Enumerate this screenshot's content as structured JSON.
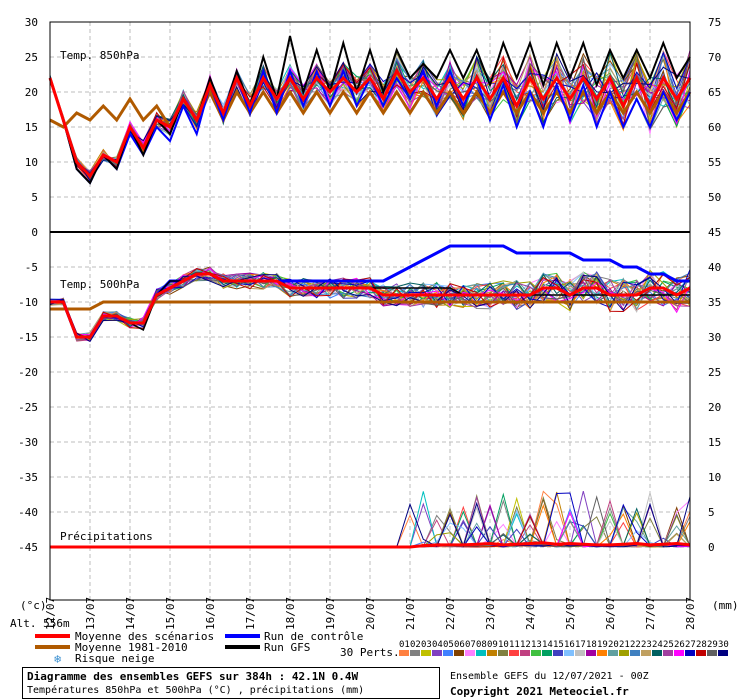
{
  "chart_data": {
    "type": "line",
    "x_labels": [
      "12/07",
      "13/07",
      "14/07",
      "15/07",
      "16/07",
      "17/07",
      "18/07",
      "19/07",
      "20/07",
      "21/07",
      "22/07",
      "23/07",
      "24/07",
      "25/07",
      "26/07",
      "27/07",
      "28/07"
    ],
    "left_ticks": [
      "30",
      "25",
      "20",
      "15",
      "10",
      "5",
      "0",
      "-5",
      "-10",
      "-15",
      "-20",
      "-25",
      "-30",
      "-35",
      "-40",
      "-45"
    ],
    "right_ticks_top": [
      "75",
      "70",
      "65",
      "60",
      "55",
      "50",
      "45"
    ],
    "right_ticks_bottom": [
      "40",
      "35",
      "30",
      "25",
      "20",
      "15",
      "10",
      "5",
      "0"
    ],
    "left_unit": "(°c)",
    "right_unit": "(mm)",
    "panel_t850_label": "Temp. 850hPa",
    "panel_t500_label": "Temp. 500hPa",
    "panel_precip_label": "Précipitations",
    "panels": {
      "t850": {
        "ylim": [
          0,
          30
        ],
        "scenario_mean": [
          22,
          16,
          10,
          8,
          11,
          10,
          15,
          12,
          16,
          15,
          19,
          16,
          21,
          17,
          22,
          18,
          22,
          19,
          22,
          19,
          22,
          20,
          22,
          20,
          22,
          19,
          23,
          20,
          22,
          19,
          22,
          19,
          22,
          19,
          22,
          18,
          22,
          19,
          22,
          19,
          22,
          19,
          22,
          18,
          22,
          18,
          22,
          19,
          22
        ],
        "climate_mean_1981_2010": [
          16,
          15,
          17,
          16,
          18,
          16,
          19,
          16,
          18,
          15,
          19,
          16,
          20,
          16,
          20,
          17,
          20,
          17,
          20,
          17,
          20,
          17,
          20,
          17,
          20,
          17,
          20,
          17,
          20,
          17,
          20,
          17,
          20,
          17,
          20,
          17,
          20,
          17,
          20,
          17,
          20,
          17,
          20,
          17,
          20,
          17,
          20,
          17,
          20
        ],
        "control_run": [
          22,
          16,
          9,
          7,
          11,
          9,
          14,
          11,
          15,
          13,
          18,
          14,
          21,
          16,
          22,
          17,
          23,
          17,
          23,
          18,
          23,
          18,
          23,
          18,
          22,
          18,
          22,
          19,
          23,
          18,
          23,
          18,
          22,
          16,
          21,
          15,
          20,
          15,
          21,
          16,
          21,
          15,
          20,
          15,
          19,
          15,
          20,
          16,
          20
        ],
        "gfs_run": [
          22,
          16,
          9,
          7,
          11,
          9,
          15,
          11,
          16,
          14,
          19,
          16,
          22,
          17,
          23,
          18,
          25,
          19,
          28,
          20,
          26,
          20,
          27,
          20,
          26,
          20,
          26,
          22,
          24,
          22,
          26,
          22,
          26,
          21,
          27,
          22,
          27,
          21,
          27,
          22,
          27,
          21,
          26,
          22,
          26,
          22,
          27,
          22,
          25
        ]
      },
      "t500": {
        "ylim": [
          -20,
          0
        ],
        "scenario_mean": [
          -10,
          -10,
          -15,
          -15,
          -12,
          -12,
          -13,
          -13,
          -9,
          -8,
          -7,
          -6,
          -6,
          -7,
          -7,
          -7,
          -7,
          -7,
          -8,
          -8,
          -8,
          -8,
          -8,
          -8,
          -8,
          -9,
          -9,
          -9,
          -9,
          -9,
          -9,
          -9,
          -9,
          -9,
          -9,
          -9,
          -9,
          -8,
          -8,
          -9,
          -8,
          -8,
          -9,
          -9,
          -9,
          -8,
          -8,
          -9,
          -8
        ],
        "climate_mean_1981_2010": [
          -11,
          -11,
          -11,
          -11,
          -10,
          -10,
          -10,
          -10,
          -10,
          -10,
          -10,
          -10,
          -10,
          -10,
          -10,
          -10,
          -10,
          -10,
          -10,
          -10,
          -10,
          -10,
          -10,
          -10,
          -10,
          -10,
          -10,
          -10,
          -10,
          -10,
          -10,
          -10,
          -10,
          -10,
          -10,
          -10,
          -10,
          -10,
          -10,
          -10,
          -10,
          -10,
          -10,
          -10,
          -10,
          -10,
          -10,
          -10,
          -10
        ],
        "control_run": [
          -10,
          -10,
          -15,
          -15,
          -12,
          -12,
          -13,
          -13,
          -9,
          -7,
          -7,
          -6,
          -6,
          -7,
          -7,
          -7,
          -7,
          -7,
          -7,
          -7,
          -7,
          -7,
          -7,
          -7,
          -7,
          -7,
          -6,
          -5,
          -4,
          -3,
          -2,
          -2,
          -2,
          -2,
          -2,
          -3,
          -3,
          -3,
          -3,
          -3,
          -4,
          -4,
          -4,
          -5,
          -5,
          -6,
          -6,
          -7,
          -7
        ],
        "gfs_run": [
          -10,
          -10,
          -15,
          -15,
          -12,
          -12,
          -13,
          -14,
          -9,
          -7,
          -7,
          -6,
          -6,
          -7,
          -7,
          -7,
          -7,
          -7,
          -8,
          -8,
          -8,
          -8,
          -8,
          -8,
          -8,
          -8,
          -8,
          -8,
          -8,
          -8,
          -8,
          -9,
          -9,
          -9,
          -9,
          -9,
          -9,
          -9,
          -9,
          -9,
          -9,
          -9,
          -9,
          -9,
          -9,
          -9,
          -9,
          -9,
          -9
        ]
      },
      "precip": {
        "ylim": [
          0,
          15
        ],
        "scenario_mean": [
          0,
          0,
          0,
          0,
          0,
          0,
          0,
          0,
          0,
          0,
          0,
          0,
          0,
          0,
          0,
          0,
          0,
          0,
          0,
          0,
          0,
          0,
          0,
          0,
          0,
          0,
          0,
          0,
          0.2,
          0.3,
          0.3,
          0.3,
          0.4,
          0.5,
          0.3,
          0.4,
          0.5,
          0.6,
          0.4,
          0.5,
          0.4,
          0.3,
          0.3,
          0.4,
          0.5,
          0.3,
          0.4,
          0.5,
          0.3
        ],
        "gfs_run": [
          0,
          0,
          0,
          0,
          0,
          0,
          0,
          0,
          0,
          0,
          0,
          0,
          0,
          0,
          0,
          0,
          0,
          0,
          0,
          0,
          0,
          0,
          0,
          0,
          0,
          0,
          0,
          0,
          0,
          0,
          0,
          0,
          0,
          0,
          0,
          0,
          0,
          0,
          0,
          0,
          0,
          0,
          0,
          0,
          0,
          0,
          0,
          0,
          0
        ]
      }
    },
    "legend": [
      {
        "label": "Moyenne des scénarios",
        "color": "#ff0000"
      },
      {
        "label": "Moyenne 1981-2010",
        "color": "#b05a00"
      },
      {
        "label": "Risque neige",
        "color": "#3a8fd0"
      },
      {
        "label": "Run de contrôle",
        "color": "#0000ff"
      },
      {
        "label": "Run GFS",
        "color": "#000000"
      }
    ],
    "perturbations_label": "30 Perts.",
    "perturbation_numbers": [
      "01",
      "02",
      "03",
      "04",
      "05",
      "06",
      "07",
      "08",
      "09",
      "10",
      "11",
      "12",
      "13",
      "14",
      "15",
      "16",
      "17",
      "18",
      "19",
      "20",
      "21",
      "22",
      "23",
      "24",
      "25",
      "26",
      "27",
      "28",
      "29",
      "30"
    ],
    "perturbation_colors": [
      "#ff8040",
      "#808080",
      "#c0c000",
      "#8040c0",
      "#4080ff",
      "#804000",
      "#ff80ff",
      "#00c0c0",
      "#c08000",
      "#808040",
      "#ff4040",
      "#c04080",
      "#40c040",
      "#00a060",
      "#4040c0",
      "#80c0ff",
      "#c0c0c0",
      "#a000a0",
      "#ff8000",
      "#60a0a0",
      "#a0a000",
      "#4080c0",
      "#c0a060",
      "#006060",
      "#a040a0",
      "#ff00ff",
      "#0000c0",
      "#c00000",
      "#606060",
      "#000080"
    ]
  },
  "alt_label": "Alt. 556m",
  "footer": {
    "title": "Diagramme des ensembles GEFS sur 384h : 42.1N 0.4W",
    "subtitle": "Températures 850hPa et 500hPa (°C) , précipitations (mm)",
    "run_info": "Ensemble GEFS du 12/07/2021 - 00Z",
    "copyright": "Copyright 2021 Meteociel.fr"
  },
  "colors": {
    "mean": "#ff0000",
    "climate": "#b05a00",
    "control": "#0000ff",
    "gfs": "#000000",
    "grid": "#bdbdbd"
  }
}
